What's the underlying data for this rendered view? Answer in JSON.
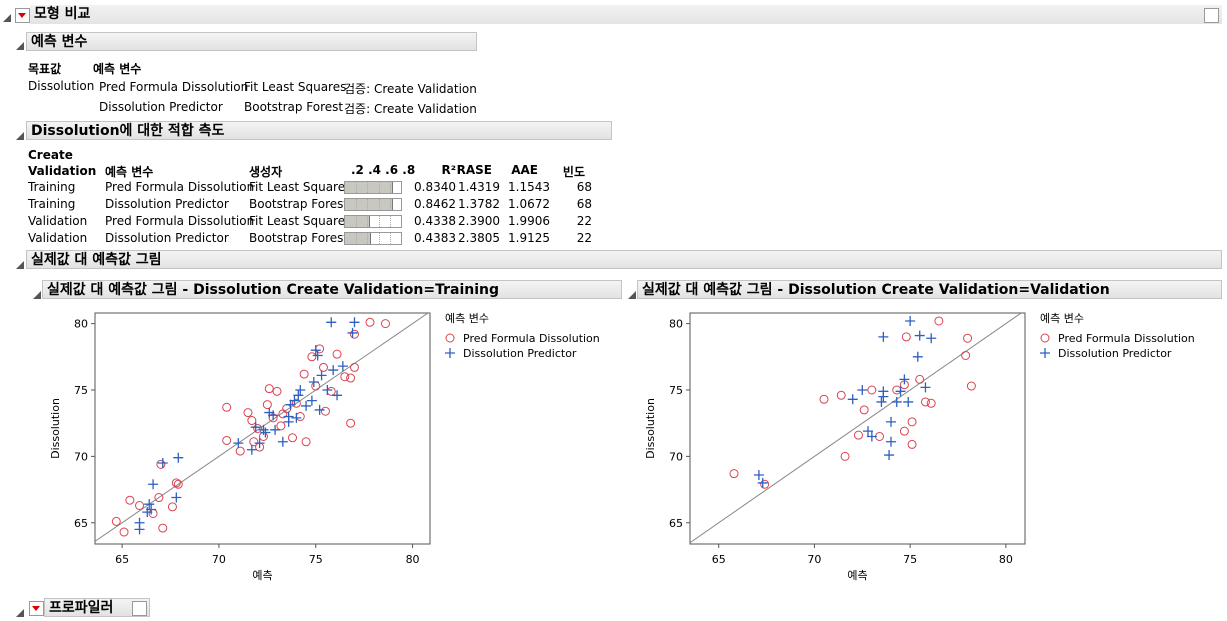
{
  "header": {
    "title": "모형 비교"
  },
  "predictors": {
    "title": "예측 변수",
    "columns": [
      "목표값",
      "예측 변수"
    ],
    "target": "Dissolution",
    "rows": [
      [
        "Pred Formula Dissolution",
        "Fit Least Squares",
        "검증: Create Validation"
      ],
      [
        "Dissolution Predictor",
        "Bootstrap Forest",
        "검증: Create Validation"
      ]
    ]
  },
  "fit": {
    "title": "Dissolution에 대한 적합 측도",
    "columns": [
      "Create Validation",
      "예측 변수",
      "생성자",
      ".2 .4 .6 .8",
      "R²",
      "RASE",
      "AAE",
      "빈도"
    ],
    "rows": [
      [
        "Training",
        "Pred Formula Dissolution",
        "Fit Least Squares",
        "0.8340",
        "1.4319",
        "1.1543",
        "68"
      ],
      [
        "Training",
        "Dissolution Predictor",
        "Bootstrap Forest",
        "0.8462",
        "1.3782",
        "1.0672",
        "68"
      ],
      [
        "Validation",
        "Pred Formula Dissolution",
        "Fit Least Squares",
        "0.4338",
        "2.3900",
        "1.9906",
        "22"
      ],
      [
        "Validation",
        "Dissolution Predictor",
        "Bootstrap Forest",
        "0.4383",
        "2.3805",
        "1.9125",
        "22"
      ]
    ]
  },
  "plots_title": "실제값 대 예측값 그림",
  "chart_data": [
    {
      "type": "scatter",
      "title": "실제값 대 예측값 그림 - Dissolution Create Validation=Training",
      "x_label": "예측",
      "y_label": "Dissolution",
      "xlim": [
        63.6,
        80.9
      ],
      "ylim": [
        63.4,
        80.8
      ],
      "xticks": [
        65,
        70,
        75,
        80
      ],
      "yticks": [
        65,
        70,
        75,
        80
      ],
      "legend_title": "예측 변수",
      "legend": "right",
      "series": [
        {
          "name": "Pred Formula Dissolution",
          "color": "#d9434f",
          "marker": "circle",
          "x": [
            64.7,
            65.1,
            65.4,
            65.9,
            66.6,
            66.9,
            67.1,
            67.0,
            67.8,
            67.9,
            67.6,
            70.4,
            70.4,
            71.1,
            71.5,
            71.7,
            71.8,
            72.0,
            72.3,
            72.5,
            72.6,
            72.8,
            73.0,
            73.2,
            73.5,
            73.8,
            74.0,
            74.2,
            74.5,
            74.4,
            74.8,
            75.0,
            75.2,
            75.4,
            75.8,
            76.1,
            76.5,
            76.8,
            76.8,
            77.0,
            77.0,
            77.8,
            78.6,
            75.5,
            73.3,
            72.1
          ],
          "values": [
            65.1,
            64.3,
            66.7,
            66.3,
            65.7,
            66.9,
            64.6,
            69.4,
            68.0,
            67.9,
            66.2,
            73.7,
            71.2,
            70.4,
            73.3,
            72.7,
            71.1,
            72.1,
            71.5,
            73.9,
            75.1,
            72.9,
            74.9,
            72.3,
            73.6,
            71.4,
            74.0,
            73.0,
            71.1,
            76.2,
            77.5,
            75.3,
            78.1,
            76.7,
            74.9,
            77.7,
            76.0,
            75.9,
            72.5,
            76.7,
            79.2,
            80.1,
            80.0,
            73.4,
            73.2,
            70.7
          ]
        },
        {
          "name": "Dissolution Predictor",
          "color": "#2f5fbf",
          "marker": "plus",
          "x": [
            65.9,
            65.9,
            66.3,
            66.4,
            66.6,
            66.5,
            67.1,
            67.9,
            67.8,
            71.0,
            71.7,
            71.9,
            72.1,
            72.3,
            72.6,
            72.8,
            72.9,
            73.3,
            73.6,
            73.7,
            73.9,
            74.0,
            74.2,
            74.5,
            74.8,
            74.9,
            75.0,
            75.1,
            75.3,
            75.6,
            75.9,
            76.1,
            76.4,
            76.9,
            77.0,
            75.8,
            73.6,
            72.4,
            74.1,
            75.2
          ],
          "values": [
            64.5,
            65.0,
            65.8,
            66.4,
            67.9,
            66.0,
            69.5,
            69.9,
            66.9,
            71.0,
            70.5,
            72.2,
            71.0,
            72.0,
            73.3,
            73.1,
            72.0,
            71.1,
            72.6,
            73.9,
            74.2,
            72.9,
            75.0,
            73.8,
            74.2,
            75.6,
            78.0,
            77.6,
            76.1,
            75.0,
            76.5,
            74.6,
            76.8,
            79.3,
            80.1,
            80.1,
            73.0,
            71.8,
            74.6,
            73.5
          ]
        }
      ]
    },
    {
      "type": "scatter",
      "title": "실제값 대 예측값 그림 - Dissolution Create Validation=Validation",
      "x_label": "예측",
      "y_label": "Dissolution",
      "xlim": [
        63.5,
        81.0
      ],
      "ylim": [
        63.4,
        80.8
      ],
      "xticks": [
        65,
        70,
        75,
        80
      ],
      "yticks": [
        65,
        70,
        75,
        80
      ],
      "legend_title": "예측 변수",
      "legend": "right",
      "series": [
        {
          "name": "Pred Formula Dissolution",
          "color": "#d9434f",
          "marker": "circle",
          "x": [
            65.8,
            67.4,
            70.5,
            71.4,
            71.6,
            72.3,
            72.6,
            73.0,
            73.4,
            74.3,
            74.7,
            74.8,
            75.1,
            75.1,
            75.5,
            75.8,
            76.1,
            76.5,
            77.9,
            78.0,
            78.2,
            74.7
          ],
          "values": [
            68.7,
            67.9,
            74.3,
            74.6,
            70.0,
            71.6,
            73.5,
            75.0,
            71.5,
            75.0,
            71.9,
            79.0,
            72.6,
            70.9,
            75.8,
            74.1,
            74.0,
            80.2,
            77.6,
            78.9,
            75.3,
            75.4
          ]
        },
        {
          "name": "Dissolution Predictor",
          "color": "#2f5fbf",
          "marker": "plus",
          "x": [
            67.1,
            67.3,
            72.0,
            72.5,
            72.8,
            73.0,
            73.6,
            73.6,
            73.6,
            73.9,
            74.0,
            74.0,
            74.3,
            74.5,
            74.7,
            74.9,
            75.0,
            75.4,
            75.5,
            75.8,
            76.1,
            73.5
          ],
          "values": [
            68.6,
            68.0,
            74.3,
            75.0,
            71.9,
            71.5,
            74.9,
            79.0,
            74.5,
            70.1,
            71.1,
            72.6,
            74.1,
            74.9,
            75.8,
            74.1,
            80.2,
            77.5,
            79.1,
            75.2,
            78.9,
            74.1
          ]
        }
      ]
    }
  ],
  "profiler": {
    "title": "프로파일러"
  }
}
